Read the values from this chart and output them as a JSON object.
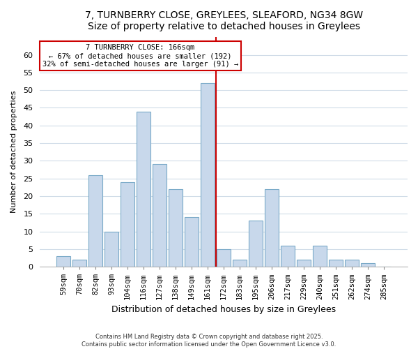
{
  "title": "7, TURNBERRY CLOSE, GREYLEES, SLEAFORD, NG34 8GW",
  "subtitle": "Size of property relative to detached houses in Greylees",
  "xlabel": "Distribution of detached houses by size in Greylees",
  "ylabel": "Number of detached properties",
  "bar_labels": [
    "59sqm",
    "70sqm",
    "82sqm",
    "93sqm",
    "104sqm",
    "116sqm",
    "127sqm",
    "138sqm",
    "149sqm",
    "161sqm",
    "172sqm",
    "183sqm",
    "195sqm",
    "206sqm",
    "217sqm",
    "229sqm",
    "240sqm",
    "251sqm",
    "262sqm",
    "274sqm",
    "285sqm"
  ],
  "bar_values": [
    3,
    2,
    26,
    10,
    24,
    44,
    29,
    22,
    14,
    52,
    5,
    2,
    13,
    22,
    6,
    2,
    6,
    2,
    2,
    1,
    0
  ],
  "bar_color": "#c8d8eb",
  "bar_edgecolor": "#7aaac8",
  "vline_x": 9.5,
  "vline_color": "#cc0000",
  "annotation_title": "7 TURNBERRY CLOSE: 166sqm",
  "annotation_line1": "← 67% of detached houses are smaller (192)",
  "annotation_line2": "32% of semi-detached houses are larger (91) →",
  "annotation_box_edgecolor": "#cc0000",
  "ylim": [
    0,
    65
  ],
  "yticks": [
    0,
    5,
    10,
    15,
    20,
    25,
    30,
    35,
    40,
    45,
    50,
    55,
    60
  ],
  "footer1": "Contains HM Land Registry data © Crown copyright and database right 2025.",
  "footer2": "Contains public sector information licensed under the Open Government Licence v3.0.",
  "bg_color": "#ffffff",
  "plot_bg_color": "#ffffff",
  "grid_color": "#d0dce8"
}
